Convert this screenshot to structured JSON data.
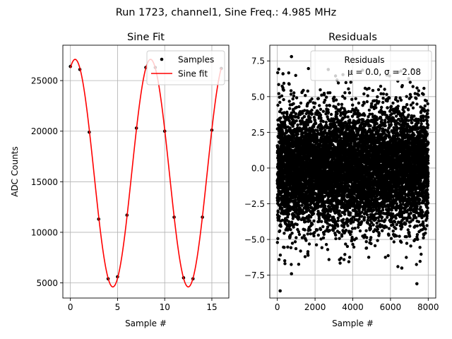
{
  "suptitle": "Run 1723, channel1, Sine Freq.: 4.985 MHz",
  "colors": {
    "fit": "#ff0000",
    "points": "#000000",
    "grid": "#b0b0b0"
  },
  "chart_data": [
    {
      "type": "scatter",
      "title": "Sine Fit",
      "xlabel": "Sample #",
      "ylabel": "ADC Counts",
      "xlim": [
        -0.8,
        16.8
      ],
      "ylim": [
        3500,
        28500
      ],
      "xticks": [
        0,
        5,
        10,
        15
      ],
      "xtick_labels": [
        "0",
        "5",
        "10",
        "15"
      ],
      "yticks": [
        5000,
        10000,
        15000,
        20000,
        25000
      ],
      "ytick_labels": [
        "5000",
        "10000",
        "15000",
        "20000",
        "25000"
      ],
      "grid": true,
      "legend": "top-right",
      "series": [
        {
          "name": "Samples",
          "kind": "points",
          "x": [
            0,
            1,
            2,
            3,
            4,
            5,
            6,
            7,
            8,
            9,
            10,
            11,
            12,
            13,
            14,
            15,
            16
          ],
          "y": [
            26400,
            26100,
            19900,
            11300,
            5400,
            5600,
            11700,
            20300,
            26300,
            26300,
            20000,
            11500,
            5500,
            5400,
            11500,
            20100,
            26200
          ]
        },
        {
          "name": "Sine fit",
          "kind": "line",
          "model": {
            "offset": 15850,
            "amplitude": 11250,
            "period": 8.0,
            "peak_x": 0.5,
            "x_range": [
              0,
              16
            ]
          }
        }
      ]
    },
    {
      "type": "scatter",
      "title": "Residuals",
      "xlabel": "Sample #",
      "ylabel": "",
      "xlim": [
        -400,
        8400
      ],
      "ylim": [
        -9.1,
        8.6
      ],
      "xticks": [
        0,
        2000,
        4000,
        6000,
        8000
      ],
      "xtick_labels": [
        "0",
        "2000",
        "4000",
        "6000",
        "8000"
      ],
      "yticks": [
        -7.5,
        -5.0,
        -2.5,
        0.0,
        2.5,
        5.0,
        7.5
      ],
      "ytick_labels": [
        "−7.5",
        "−5.0",
        "−2.5",
        "0.0",
        "2.5",
        "5.0",
        "7.5"
      ],
      "grid": true,
      "legend": "top-right",
      "legend_title": "Residuals",
      "legend_text": "μ = 0.0, σ = 2.08",
      "series": [
        {
          "name": "Residuals",
          "kind": "points",
          "count": 8000,
          "mean": 0.0,
          "std": 2.08,
          "x_range": [
            0,
            8000
          ],
          "outliers": [
            {
              "x": 150,
              "y": -8.6
            },
            {
              "x": 750,
              "y": 7.8
            },
            {
              "x": 750,
              "y": -7.4
            },
            {
              "x": 7400,
              "y": -8.1
            },
            {
              "x": 300,
              "y": 6.6
            },
            {
              "x": 2700,
              "y": 6.9
            },
            {
              "x": 6600,
              "y": -7.0
            }
          ]
        }
      ]
    }
  ]
}
